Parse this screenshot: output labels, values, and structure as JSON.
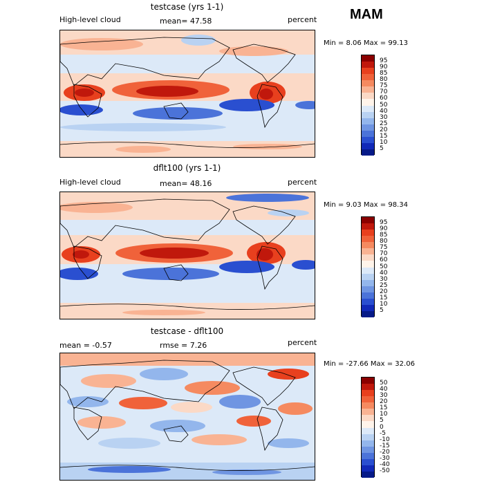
{
  "season": "MAM",
  "panels": [
    {
      "title": "testcase (yrs 1-1)",
      "left_label": "High-level cloud",
      "mean_label": "mean=  47.58",
      "rmse_label": "",
      "units": "percent",
      "minmax": "Min =    8.06 Max =   99.13",
      "levels": [
        "95",
        "90",
        "85",
        "80",
        "75",
        "70",
        "60",
        "50",
        "40",
        "30",
        "25",
        "20",
        "15",
        "10",
        "5"
      ],
      "colors": [
        "#8b0000",
        "#c0180c",
        "#e8401e",
        "#f0623a",
        "#f58a60",
        "#f9b393",
        "#fbd9c6",
        "#fff4ea",
        "#dce9f8",
        "#b9d2f2",
        "#93b6ec",
        "#6f95e2",
        "#4b73d9",
        "#2a4fd0",
        "#1129b8",
        "#061a88"
      ]
    },
    {
      "title": "dflt100 (yrs 1-1)",
      "left_label": "High-level cloud",
      "mean_label": "mean=  48.16",
      "rmse_label": "",
      "units": "percent",
      "minmax": "Min =    9.03 Max =   98.34",
      "levels": [
        "95",
        "90",
        "85",
        "80",
        "75",
        "70",
        "60",
        "50",
        "40",
        "30",
        "25",
        "20",
        "15",
        "10",
        "5"
      ],
      "colors": [
        "#8b0000",
        "#c0180c",
        "#e8401e",
        "#f0623a",
        "#f58a60",
        "#f9b393",
        "#fbd9c6",
        "#fff4ea",
        "#dce9f8",
        "#b9d2f2",
        "#93b6ec",
        "#6f95e2",
        "#4b73d9",
        "#2a4fd0",
        "#1129b8",
        "#061a88"
      ]
    },
    {
      "title": "testcase - dflt100",
      "left_label": "mean =   -0.57",
      "mean_label": "",
      "rmse_label": "rmse =    7.26",
      "units": "percent",
      "minmax": "Min = -27.66 Max =   32.06",
      "levels": [
        "50",
        "40",
        "30",
        "20",
        "15",
        "10",
        "5",
        "0",
        "-5",
        "-10",
        "-15",
        "-20",
        "-30",
        "-40",
        "-50"
      ],
      "colors": [
        "#8b0000",
        "#c0180c",
        "#e8401e",
        "#f0623a",
        "#f58a60",
        "#f9b393",
        "#fbd9c6",
        "#fff4ea",
        "#dce9f8",
        "#b9d2f2",
        "#93b6ec",
        "#6f95e2",
        "#4b73d9",
        "#2a4fd0",
        "#1129b8",
        "#061a88"
      ]
    }
  ]
}
